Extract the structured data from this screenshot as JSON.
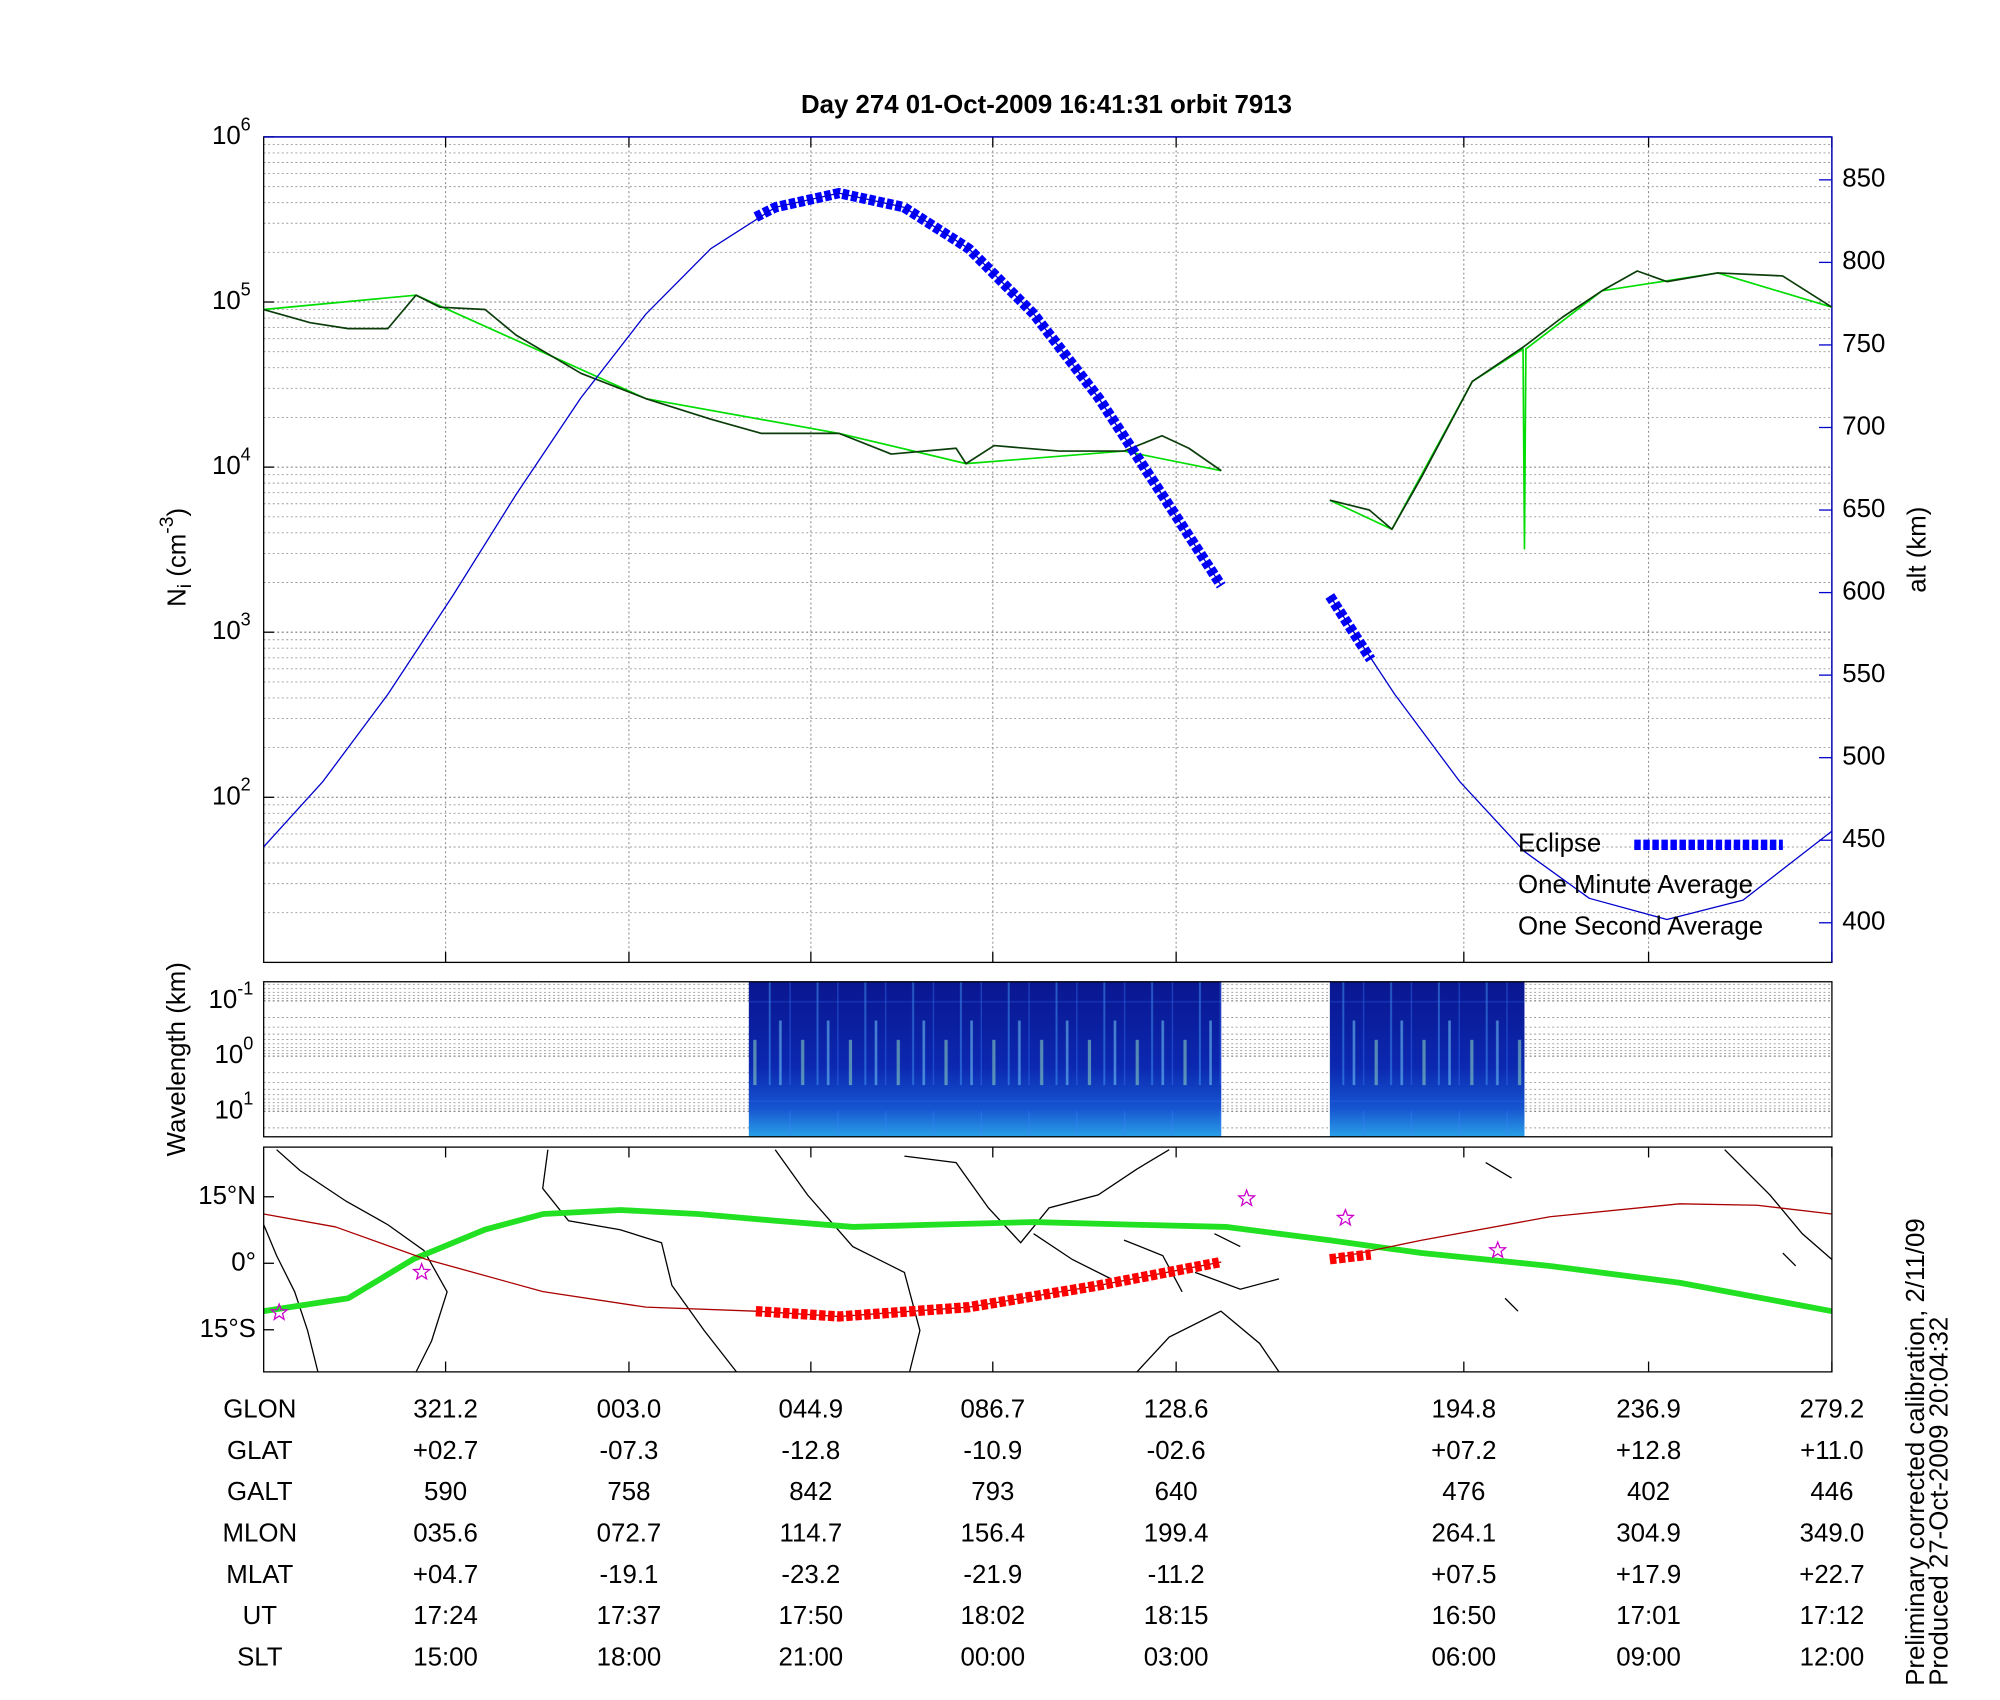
{
  "chart_data": [
    {
      "type": "line",
      "title": "Day 274  01-Oct-2009 16:41:31   orbit 7913",
      "log": true,
      "grid": true,
      "legend": "lower right",
      "xlim": [
        0,
        111.2
      ],
      "xticks": [
        12.9,
        25.9,
        38.8,
        51.7,
        64.7,
        85.1,
        98.2,
        111.2
      ],
      "ylim": [
        10,
        1000000
      ],
      "yticks": [
        {
          "value": 100,
          "label": "10",
          "exp": "2"
        },
        {
          "value": 1000,
          "label": "10",
          "exp": "3"
        },
        {
          "value": 10000,
          "label": "10",
          "exp": "4"
        },
        {
          "value": 100000,
          "label": "10",
          "exp": "5"
        },
        {
          "value": 1000000,
          "label": "10",
          "exp": "6"
        }
      ],
      "ylabel": {
        "text": "N",
        "sub": "i",
        "unit": " (cm",
        "sup": "-3",
        "end": ")"
      },
      "y2lim": [
        376,
        876
      ],
      "y2ticks": [
        400,
        450,
        500,
        550,
        600,
        650,
        700,
        750,
        800,
        850
      ],
      "y2label": "alt (km)",
      "y2color": "#0000cc",
      "series": [
        {
          "color": "#0000cc",
          "style": "thin",
          "axis": "y2",
          "x": [
            0,
            4.2,
            8.8,
            13.4,
            17.9,
            22.5,
            27.1,
            31.7,
            36.3,
            40.8,
            45.4,
            50.0,
            54.6,
            59.2,
            63.7,
            67.9,
            71.8,
            75.6,
            80.2,
            84.8,
            89.4,
            94.0,
            99.5,
            104.9,
            111.2
          ],
          "values": [
            446,
            485.6,
            538.4,
            598,
            659.4,
            718,
            768.7,
            808.3,
            833.4,
            842,
            833.4,
            808.3,
            768.7,
            718,
            659.4,
            604.2,
            null,
            598,
            538.4,
            485.6,
            443.1,
            414.8,
            402,
            413.7,
            455.5
          ]
        },
        {
          "name": "Eclipse",
          "color": "#0000ff",
          "style": "dashed",
          "axis": "y2",
          "x": [
            34.9,
            36.3,
            40.8,
            45.4,
            50.0,
            54.6,
            59.2,
            63.7,
            67.9,
            71.8,
            75.6,
            78.5
          ],
          "values": [
            827.5,
            833.4,
            842,
            833.4,
            808.3,
            768.7,
            718,
            659.4,
            604.2,
            null,
            598,
            559.5
          ]
        },
        {
          "name": "One Minute Average",
          "color": "#0b3d0b",
          "style": "medium",
          "x": [
            0,
            3.3,
            6.0,
            8.8,
            10.8,
            12.5,
            15.7,
            17.9,
            22.5,
            27.1,
            31.7,
            35.3,
            40.8,
            44.5,
            49.1,
            49.8,
            51.8,
            56.4,
            61.0,
            63.7,
            65.6,
            67.9,
            71.8,
            75.6,
            78.4,
            80.0,
            82.1,
            85.7,
            89.4,
            92.1,
            94.9,
            97.4,
            99.5,
            103.1,
            107.7,
            111.2
          ],
          "values": [
            90000,
            75000,
            69000,
            69000,
            110000,
            93000,
            90000,
            63000,
            37000,
            26000,
            19500,
            16000,
            16000,
            12000,
            13000,
            10500,
            13500,
            12500,
            12500,
            15500,
            13000,
            9500,
            null,
            6300,
            5500,
            4200,
            8700,
            33000,
            54000,
            81000,
            117000,
            154000,
            133000,
            150000,
            144000,
            93000
          ]
        },
        {
          "name": "One Second Average",
          "color": "#00dd00",
          "style": "medium",
          "x": [
            0,
            10.8,
            27.1,
            40.8,
            49.8,
            61.0,
            67.9,
            71.8,
            75.6,
            80.0,
            85.7,
            89.3,
            89.4,
            89.5,
            94.9,
            103.1,
            111.2
          ],
          "values": [
            90000,
            110000,
            26000,
            16000,
            10500,
            12500,
            9500,
            null,
            6300,
            4200,
            33000,
            52000,
            3200,
            52000,
            117000,
            150000,
            93000
          ]
        }
      ]
    },
    {
      "type": "spectrogram",
      "log": true,
      "inverted": true,
      "ylim": [
        0.045,
        29
      ],
      "yticks": [
        {
          "value": 0.1,
          "label": "10",
          "exp": "-1"
        },
        {
          "value": 1,
          "label": "10",
          "exp": "0"
        },
        {
          "value": 10,
          "label": "10",
          "exp": "1"
        }
      ],
      "ylabel": "Wavelength (km)",
      "blocks": [
        [
          34.4,
          67.9
        ],
        [
          75.6,
          89.4
        ]
      ]
    },
    {
      "type": "map",
      "ylim": [
        -24.5,
        26.2
      ],
      "yticks": [
        {
          "value": 15,
          "label": "15°N"
        },
        {
          "value": 0,
          "label": "0°"
        },
        {
          "value": -15,
          "label": "15°S"
        }
      ],
      "series": [
        {
          "color": "#22e022",
          "style": "thick",
          "x": [
            0,
            6.0,
            10.6,
            15.7,
            19.8,
            25.3,
            30.8,
            36.3,
            41.8,
            47.3,
            54.6,
            61.9,
            68.3,
            75.6,
            82.1,
            91.2,
            100.4,
            111.2
          ],
          "values": [
            -10.8,
            -7.9,
            0.9,
            7.6,
            11.1,
            12.0,
            11.1,
            9.6,
            8.2,
            8.7,
            9.3,
            8.7,
            8.2,
            5.2,
            2.3,
            -0.6,
            -4.4,
            -10.8
          ]
        },
        {
          "color": "#aa0000",
          "style": "thin",
          "x": [
            0,
            5.1,
            11.5,
            19.8,
            27.1,
            34.9,
            40.8,
            50.0,
            59.2,
            67.9,
            71.8,
            75.6,
            82.1,
            91.2,
            100.4,
            105.9,
            111.2
          ],
          "values": [
            11.1,
            8.2,
            0.9,
            -6.4,
            -9.9,
            -10.8,
            -12.0,
            -9.9,
            -5.0,
            0.3,
            null,
            0.9,
            5.2,
            10.5,
            13.4,
            13.1,
            11.1
          ]
        },
        {
          "color": "#ff0000",
          "style": "dashed",
          "x": [
            34.9,
            40.8,
            50.0,
            59.2,
            67.9,
            71.8,
            75.6,
            78.5
          ],
          "values": [
            -10.8,
            -12.0,
            -9.9,
            -5.0,
            0.3,
            null,
            0.9,
            2.0
          ]
        },
        {
          "type": "scatter",
          "marker": "star",
          "color": "#cc00cc",
          "x": [
            69.7,
            76.7,
            87.5,
            11.2,
            1.1
          ],
          "values": [
            14.6,
            10.2,
            2.9,
            -2.0,
            -11.1
          ]
        }
      ]
    }
  ],
  "table": {
    "rows": [
      {
        "label": "GLON",
        "values": [
          "321.2",
          "003.0",
          "044.9",
          "086.7",
          "128.6",
          "194.8",
          "236.9",
          "279.2"
        ]
      },
      {
        "label": "GLAT",
        "values": [
          "+02.7",
          "-07.3",
          "-12.8",
          "-10.9",
          "-02.6",
          "+07.2",
          "+12.8",
          "+11.0"
        ]
      },
      {
        "label": "GALT",
        "values": [
          "590",
          "758",
          "842",
          "793",
          "640",
          "476",
          "402",
          "446"
        ]
      },
      {
        "label": "MLON",
        "values": [
          "035.6",
          "072.7",
          "114.7",
          "156.4",
          "199.4",
          "264.1",
          "304.9",
          "349.0"
        ]
      },
      {
        "label": "MLAT",
        "values": [
          "+04.7",
          "-19.1",
          "-23.2",
          "-21.9",
          "-11.2",
          "+07.5",
          "+17.9",
          "+22.7"
        ]
      },
      {
        "label": "UT",
        "values": [
          "17:24",
          "17:37",
          "17:50",
          "18:02",
          "18:15",
          "16:50",
          "17:01",
          "17:12"
        ]
      },
      {
        "label": "SLT",
        "values": [
          "15:00",
          "18:00",
          "21:00",
          "00:00",
          "03:00",
          "06:00",
          "09:00",
          "12:00"
        ]
      }
    ]
  },
  "notes": [
    "Preliminary corrected calibration, 2/11/09",
    "Produced 27-Oct-2009 20:04:32"
  ]
}
